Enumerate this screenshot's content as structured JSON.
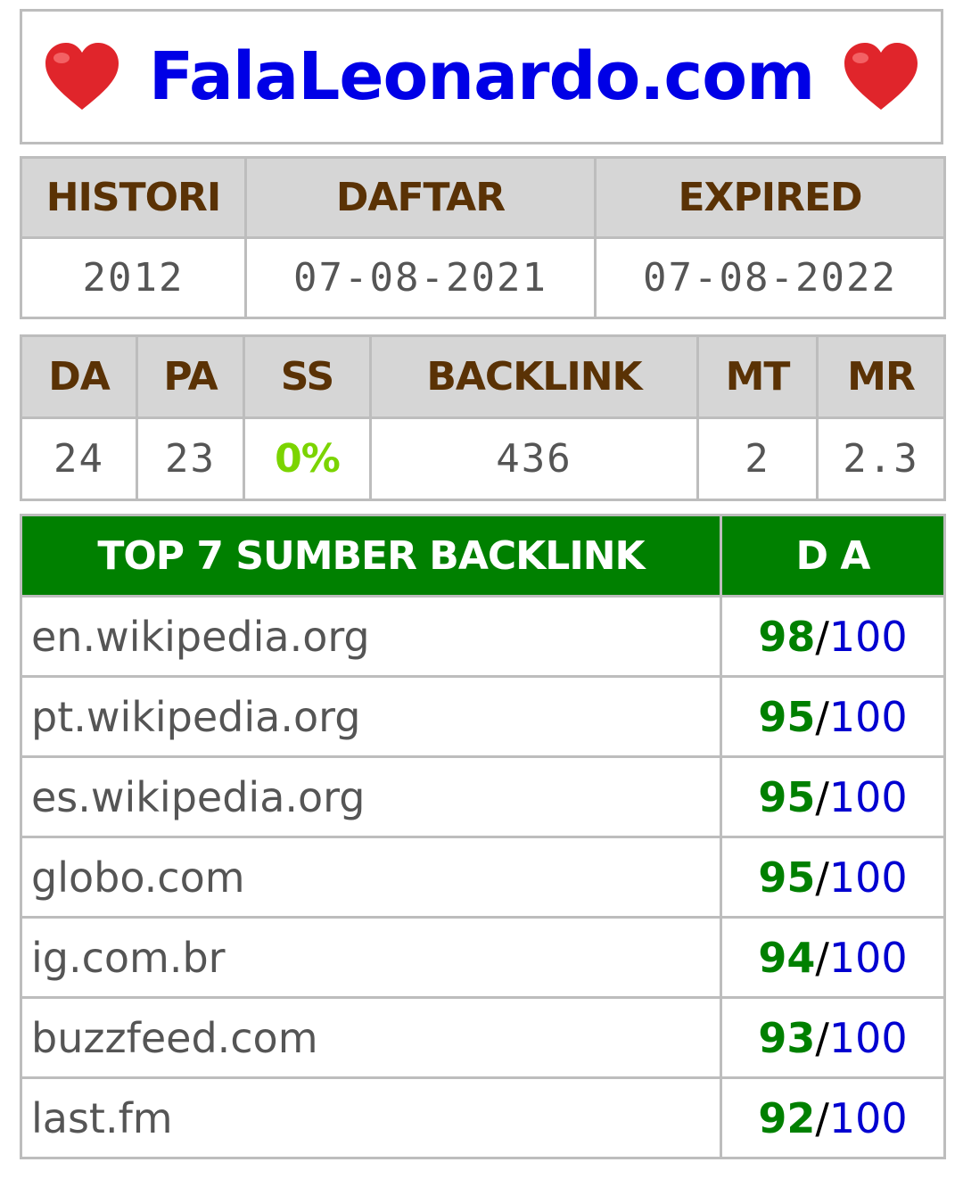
{
  "header": {
    "site": "FalaLeonardo.com",
    "left_icon": "heart-icon",
    "right_icon": "heart-icon",
    "heart_color": "#e0252b"
  },
  "info_table": {
    "headers": [
      "HISTORI",
      "DAFTAR",
      "EXPIRED"
    ],
    "values": [
      "2012",
      "07-08-2021",
      "07-08-2022"
    ]
  },
  "metrics_table": {
    "headers": [
      "DA",
      "PA",
      "SS",
      "BACKLINK",
      "MT",
      "MR"
    ],
    "values": [
      "24",
      "23",
      "0%",
      "436",
      "2",
      "2.3"
    ]
  },
  "backlinks": {
    "title": "TOP 7 SUMBER BACKLINK",
    "da_header": "D A",
    "max": "100",
    "rows": [
      {
        "domain": "en.wikipedia.org",
        "da": "98"
      },
      {
        "domain": "pt.wikipedia.org",
        "da": "95"
      },
      {
        "domain": "es.wikipedia.org",
        "da": "95"
      },
      {
        "domain": "globo.com",
        "da": "95"
      },
      {
        "domain": "ig.com.br",
        "da": "94"
      },
      {
        "domain": "buzzfeed.com",
        "da": "93"
      },
      {
        "domain": "last.fm",
        "da": "92"
      }
    ]
  },
  "colors": {
    "header_bg": "#d6d6d6",
    "header_text": "#5a3205",
    "green": "#008000",
    "blue": "#0000e6",
    "ss": "#7bd400"
  }
}
